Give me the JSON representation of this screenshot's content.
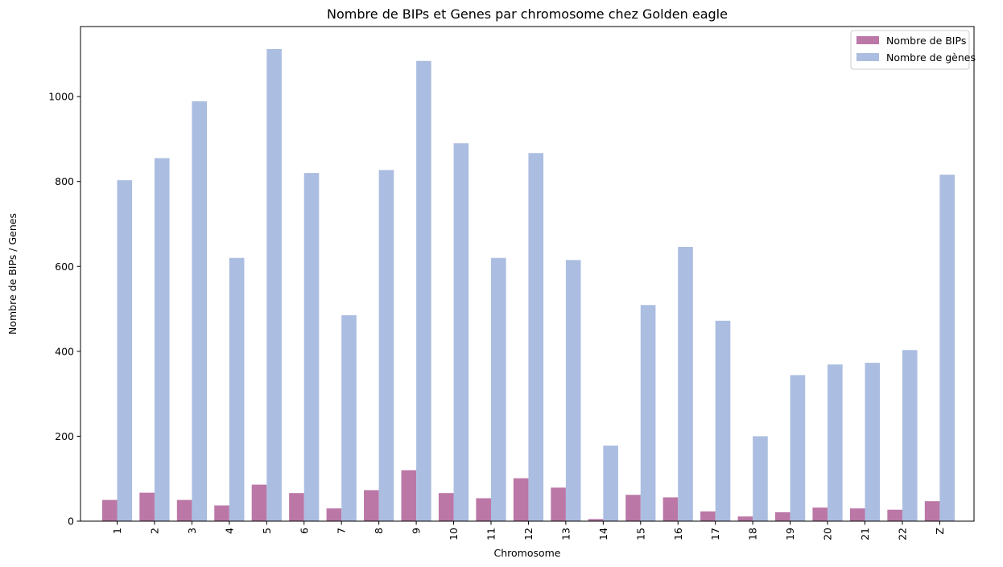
{
  "chart_data": {
    "type": "bar",
    "title": "Nombre de BIPs et Genes par chromosome chez Golden eagle",
    "xlabel": "Chromosome",
    "ylabel": "Nombre de BIPs / Genes",
    "categories": [
      "1",
      "2",
      "3",
      "4",
      "5",
      "6",
      "7",
      "8",
      "9",
      "10",
      "11",
      "12",
      "13",
      "14",
      "15",
      "16",
      "17",
      "18",
      "19",
      "20",
      "21",
      "22",
      "Z"
    ],
    "ylim": [
      0,
      1165
    ],
    "yticks": [
      0,
      200,
      400,
      600,
      800,
      1000
    ],
    "grid": false,
    "legend_position": "top-right",
    "series": [
      {
        "name": "Nombre de BIPs",
        "color": "#bb77a6",
        "values": [
          50,
          67,
          50,
          37,
          86,
          66,
          30,
          73,
          120,
          66,
          54,
          101,
          79,
          5,
          62,
          56,
          23,
          11,
          21,
          32,
          30,
          27,
          47
        ]
      },
      {
        "name": "Nombre de gènes",
        "color": "#abbde0",
        "values": [
          803,
          855,
          989,
          620,
          1112,
          820,
          485,
          827,
          1084,
          890,
          620,
          867,
          615,
          178,
          509,
          646,
          472,
          200,
          344,
          369,
          373,
          403,
          816
        ]
      }
    ]
  }
}
